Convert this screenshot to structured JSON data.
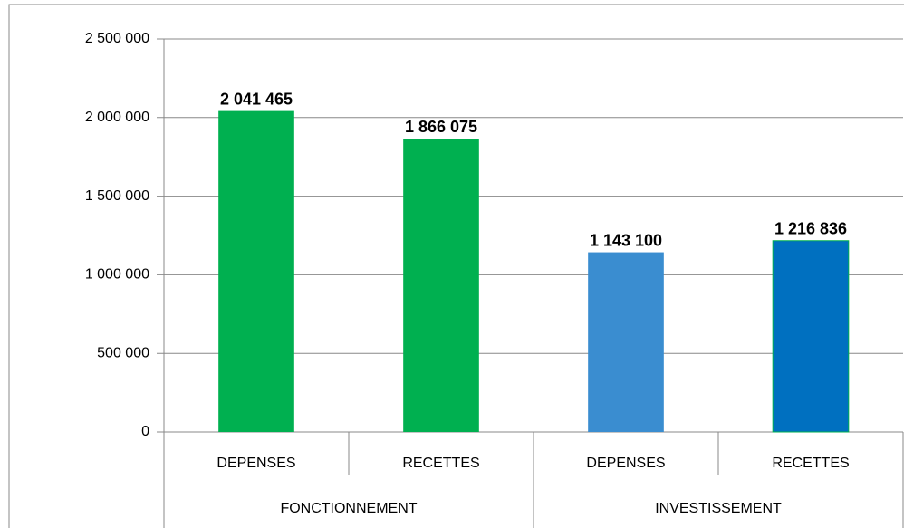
{
  "chart_data": {
    "type": "bar",
    "categories": [
      "DEPENSES",
      "RECETTES",
      "DEPENSES",
      "RECETTES"
    ],
    "groups": [
      "FONCTIONNEMENT",
      "INVESTISSEMENT"
    ],
    "values": [
      2041465,
      1866075,
      1143100,
      1216836
    ],
    "value_labels": [
      "2 041 465",
      "1 866 075",
      "1 143 100",
      "1 216 836"
    ],
    "colors": [
      "#00b050",
      "#00b050",
      "#3a8dd0",
      "#0070c0"
    ],
    "ylim": [
      0,
      2500000
    ],
    "yticks": [
      0,
      {
        "value": 500000,
        "label": "500 000"
      },
      {
        "value": 1000000,
        "label": "1 000 000"
      },
      {
        "value": 1500000,
        "label": "1 500 000"
      },
      {
        "value": 2000000,
        "label": "2 000 000"
      },
      {
        "value": 2500000,
        "label": "2 500 000"
      }
    ],
    "grid": true
  }
}
